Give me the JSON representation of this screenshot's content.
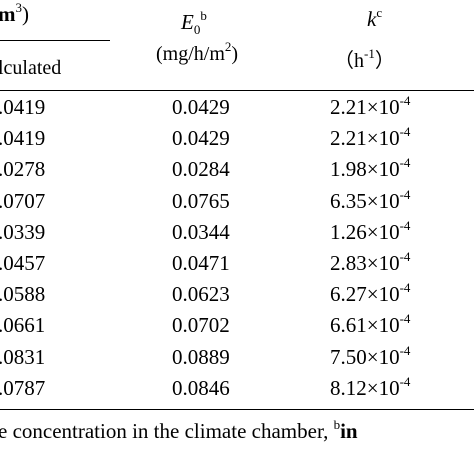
{
  "header": {
    "col1_top_fragment": "m",
    "col1_top_sup": "3",
    "col1_top_close": ")",
    "col1_sub": "lculated",
    "col2_symbol": "E",
    "col2_subscript": "0",
    "col2_sup": "b",
    "col2_unit_text": "(mg/h/m",
    "col2_unit_sup": "2",
    "col2_unit_close": ")",
    "col3_symbol": "k",
    "col3_sup": "c",
    "col3_unit_open": "（h",
    "col3_unit_sup": "-1",
    "col3_unit_close": "）"
  },
  "rows": [
    {
      "calc": ".0419",
      "e0": "0.0429",
      "k_mant": "2.21×10",
      "k_exp": "-4"
    },
    {
      "calc": ".0419",
      "e0": "0.0429",
      "k_mant": "2.21×10",
      "k_exp": "-4"
    },
    {
      "calc": ".0278",
      "e0": "0.0284",
      "k_mant": "1.98×10",
      "k_exp": "-4"
    },
    {
      "calc": ".0707",
      "e0": "0.0765",
      "k_mant": "6.35×10",
      "k_exp": "-4"
    },
    {
      "calc": ".0339",
      "e0": "0.0344",
      "k_mant": "1.26×10",
      "k_exp": "-4"
    },
    {
      "calc": ".0457",
      "e0": "0.0471",
      "k_mant": "2.83×10",
      "k_exp": "-4"
    },
    {
      "calc": ".0588",
      "e0": "0.0623",
      "k_mant": "6.27×10",
      "k_exp": "-4"
    },
    {
      "calc": ".0661",
      "e0": "0.0702",
      "k_mant": "6.61×10",
      "k_exp": "-4"
    },
    {
      "calc": ".0831",
      "e0": "0.0889",
      "k_mant": "7.50×10",
      "k_exp": "-4"
    },
    {
      "calc": ".0787",
      "e0": "0.0846",
      "k_mant": "8.12×10",
      "k_exp": "-4"
    }
  ],
  "footnote": {
    "text": "e concentration in the climate chamber, ",
    "sup": "b",
    "tail": "in"
  }
}
